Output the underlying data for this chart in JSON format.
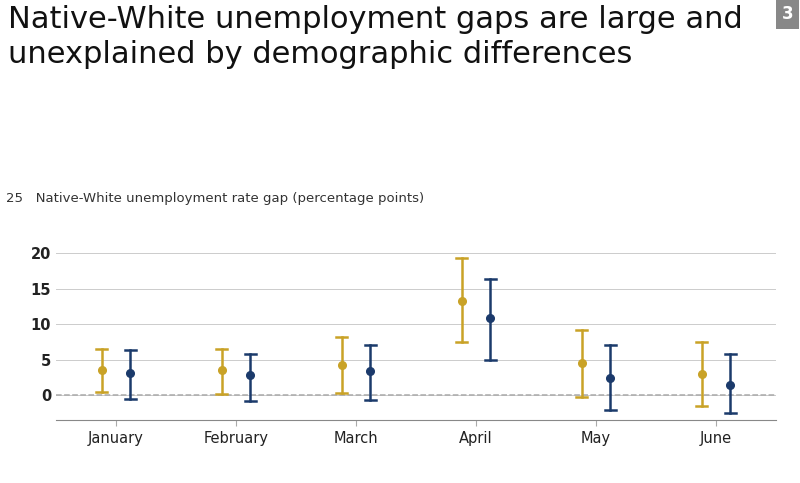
{
  "title_line1": "Native-White unemployment gaps are large and",
  "title_line2": "unexplained by demographic differences",
  "figure_number": "3",
  "axis_label": "Native-White unemployment rate gap (percentage points)",
  "months": [
    "January",
    "February",
    "March",
    "April",
    "May",
    "June"
  ],
  "unadjusted": {
    "centers": [
      3.5,
      3.5,
      4.2,
      13.3,
      4.5,
      3.0
    ],
    "lower": [
      0.5,
      0.2,
      0.3,
      7.5,
      -0.2,
      -1.5
    ],
    "upper": [
      6.5,
      6.5,
      8.2,
      19.3,
      9.2,
      7.5
    ]
  },
  "adjusted": {
    "centers": [
      3.1,
      2.8,
      3.4,
      10.8,
      2.4,
      1.5
    ],
    "lower": [
      -0.5,
      -0.8,
      -0.7,
      5.0,
      -2.0,
      -2.5
    ],
    "upper": [
      6.3,
      5.8,
      7.0,
      16.3,
      7.0,
      5.8
    ]
  },
  "unadjusted_color": "#C9A227",
  "adjusted_color": "#1B3A6B",
  "ylim": [
    -3.5,
    25
  ],
  "yticks": [
    0,
    5,
    10,
    15,
    20
  ],
  "background_color": "#ffffff",
  "title_fontsize": 22,
  "label_fontsize": 9.5,
  "tick_fontsize": 10.5
}
